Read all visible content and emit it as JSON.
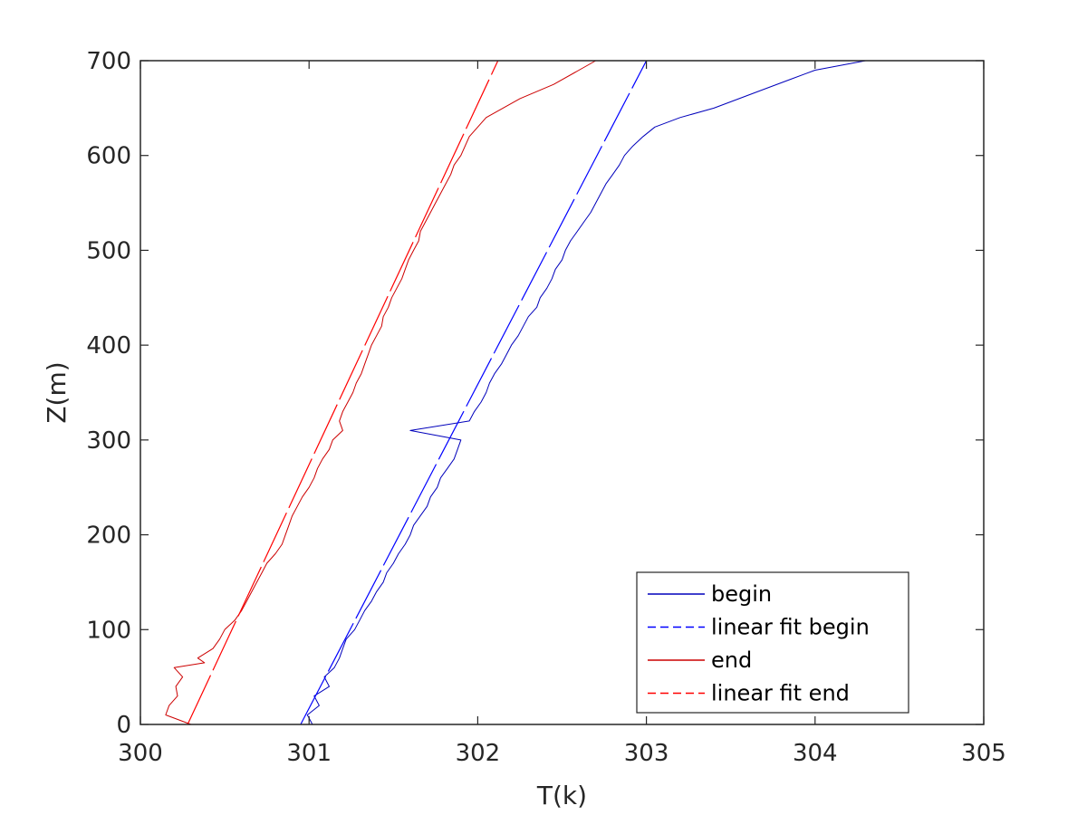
{
  "chart_data": {
    "type": "line",
    "title": "",
    "xlabel": "T(k)",
    "ylabel": "Z(m)",
    "xlim": [
      300,
      305
    ],
    "ylim": [
      0,
      700
    ],
    "xticks": [
      300,
      301,
      302,
      303,
      304,
      305
    ],
    "yticks": [
      0,
      100,
      200,
      300,
      400,
      500,
      600,
      700
    ],
    "xtick_labels": [
      "300",
      "301",
      "302",
      "303",
      "304",
      "305"
    ],
    "ytick_labels": [
      "0",
      "100",
      "200",
      "300",
      "400",
      "500",
      "600",
      "700"
    ],
    "grid": false,
    "legend_position": "bottom-right",
    "series": [
      {
        "name": "begin",
        "style": "solid",
        "color": "#0000bb",
        "points": [
          [
            301.02,
            0
          ],
          [
            300.99,
            10
          ],
          [
            301.06,
            20
          ],
          [
            301.03,
            30
          ],
          [
            301.12,
            40
          ],
          [
            301.09,
            50
          ],
          [
            301.15,
            60
          ],
          [
            301.18,
            70
          ],
          [
            301.2,
            80
          ],
          [
            301.22,
            90
          ],
          [
            301.27,
            100
          ],
          [
            301.3,
            110
          ],
          [
            301.33,
            120
          ],
          [
            301.37,
            130
          ],
          [
            301.4,
            140
          ],
          [
            301.44,
            150
          ],
          [
            301.46,
            160
          ],
          [
            301.5,
            170
          ],
          [
            301.53,
            180
          ],
          [
            301.57,
            190
          ],
          [
            301.6,
            200
          ],
          [
            301.62,
            210
          ],
          [
            301.66,
            220
          ],
          [
            301.7,
            230
          ],
          [
            301.72,
            240
          ],
          [
            301.76,
            250
          ],
          [
            301.78,
            260
          ],
          [
            301.82,
            270
          ],
          [
            301.86,
            280
          ],
          [
            301.88,
            290
          ],
          [
            301.9,
            300
          ],
          [
            301.6,
            310
          ],
          [
            301.95,
            320
          ],
          [
            301.98,
            330
          ],
          [
            302.02,
            340
          ],
          [
            302.05,
            350
          ],
          [
            302.07,
            360
          ],
          [
            302.1,
            370
          ],
          [
            302.14,
            380
          ],
          [
            302.17,
            390
          ],
          [
            302.2,
            400
          ],
          [
            302.24,
            410
          ],
          [
            302.27,
            420
          ],
          [
            302.3,
            430
          ],
          [
            302.35,
            440
          ],
          [
            302.37,
            450
          ],
          [
            302.41,
            460
          ],
          [
            302.44,
            470
          ],
          [
            302.46,
            480
          ],
          [
            302.5,
            490
          ],
          [
            302.52,
            500
          ],
          [
            302.55,
            510
          ],
          [
            302.59,
            520
          ],
          [
            302.63,
            530
          ],
          [
            302.67,
            540
          ],
          [
            302.7,
            550
          ],
          [
            302.73,
            560
          ],
          [
            302.76,
            570
          ],
          [
            302.8,
            580
          ],
          [
            302.84,
            590
          ],
          [
            302.87,
            600
          ],
          [
            302.92,
            610
          ],
          [
            302.98,
            620
          ],
          [
            303.05,
            630
          ],
          [
            303.2,
            640
          ],
          [
            303.4,
            650
          ],
          [
            303.55,
            660
          ],
          [
            303.7,
            670
          ],
          [
            303.85,
            680
          ],
          [
            304.0,
            690
          ],
          [
            304.3,
            700
          ]
        ]
      },
      {
        "name": "linear fit begin",
        "style": "dashed",
        "color": "#0000ff",
        "points": [
          [
            300.95,
            0
          ],
          [
            303.0,
            700
          ]
        ]
      },
      {
        "name": "end",
        "style": "solid",
        "color": "#cc0000",
        "points": [
          [
            300.3,
            0
          ],
          [
            300.15,
            10
          ],
          [
            300.17,
            20
          ],
          [
            300.22,
            30
          ],
          [
            300.21,
            40
          ],
          [
            300.25,
            50
          ],
          [
            300.2,
            60
          ],
          [
            300.38,
            65
          ],
          [
            300.34,
            70
          ],
          [
            300.43,
            80
          ],
          [
            300.47,
            90
          ],
          [
            300.5,
            100
          ],
          [
            300.56,
            110
          ],
          [
            300.6,
            120
          ],
          [
            300.63,
            130
          ],
          [
            300.66,
            140
          ],
          [
            300.69,
            150
          ],
          [
            300.72,
            160
          ],
          [
            300.75,
            170
          ],
          [
            300.8,
            180
          ],
          [
            300.84,
            190
          ],
          [
            300.86,
            200
          ],
          [
            300.88,
            210
          ],
          [
            300.9,
            220
          ],
          [
            300.93,
            230
          ],
          [
            300.96,
            240
          ],
          [
            301.0,
            250
          ],
          [
            301.03,
            260
          ],
          [
            301.05,
            270
          ],
          [
            301.08,
            280
          ],
          [
            301.12,
            290
          ],
          [
            301.14,
            300
          ],
          [
            301.2,
            310
          ],
          [
            301.18,
            320
          ],
          [
            301.2,
            330
          ],
          [
            301.23,
            340
          ],
          [
            301.26,
            350
          ],
          [
            301.28,
            360
          ],
          [
            301.31,
            370
          ],
          [
            301.33,
            380
          ],
          [
            301.35,
            390
          ],
          [
            301.37,
            400
          ],
          [
            301.4,
            410
          ],
          [
            301.43,
            420
          ],
          [
            301.44,
            430
          ],
          [
            301.47,
            440
          ],
          [
            301.49,
            450
          ],
          [
            301.52,
            460
          ],
          [
            301.55,
            470
          ],
          [
            301.57,
            480
          ],
          [
            301.59,
            490
          ],
          [
            301.62,
            500
          ],
          [
            301.65,
            510
          ],
          [
            301.66,
            520
          ],
          [
            301.69,
            530
          ],
          [
            301.72,
            540
          ],
          [
            301.75,
            550
          ],
          [
            301.78,
            560
          ],
          [
            301.81,
            570
          ],
          [
            301.84,
            580
          ],
          [
            301.86,
            590
          ],
          [
            301.9,
            600
          ],
          [
            301.95,
            620
          ],
          [
            302.05,
            640
          ],
          [
            302.25,
            660
          ],
          [
            302.45,
            675
          ],
          [
            302.6,
            690
          ],
          [
            302.7,
            700
          ]
        ]
      },
      {
        "name": "linear fit end",
        "style": "dashed",
        "color": "#ff0000",
        "points": [
          [
            300.28,
            0
          ],
          [
            302.12,
            700
          ]
        ]
      }
    ]
  }
}
